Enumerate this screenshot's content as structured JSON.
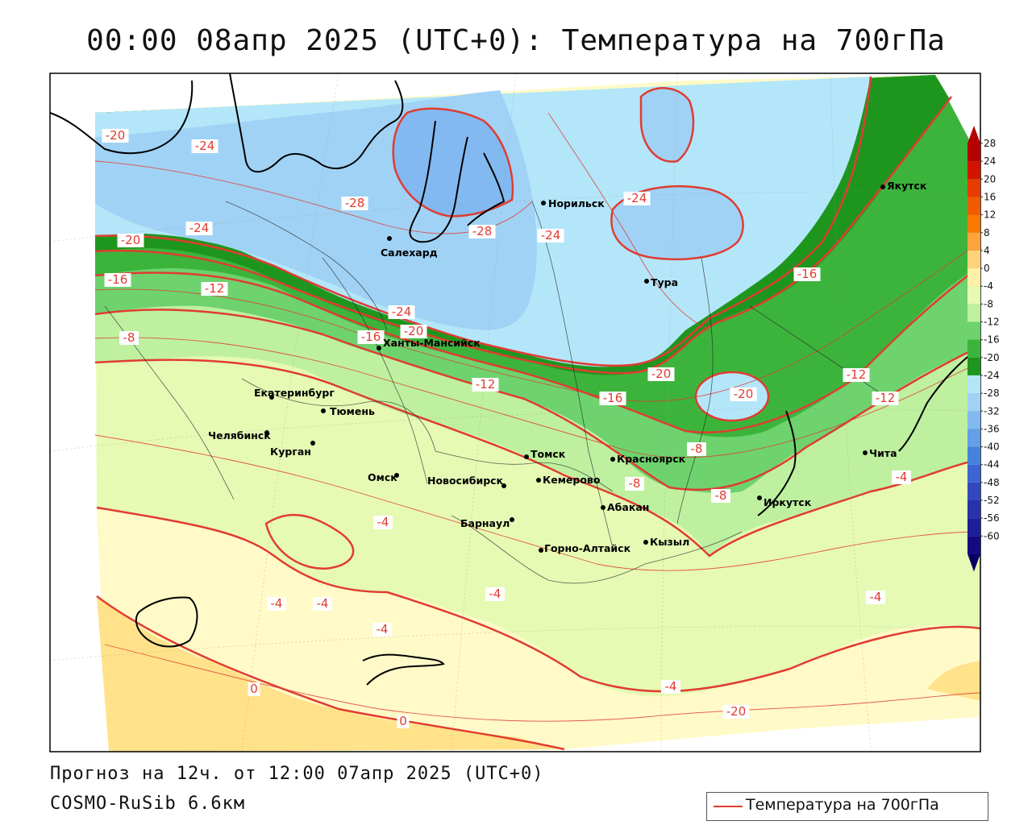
{
  "title": "00:00 08апр 2025 (UTC+0): Температура на 700гПа",
  "forecast_line": "Прогноз на 12ч. от 12:00 07апр 2025 (UTC+0)",
  "model_line": "COSMO-RuSib 6.6км",
  "legend": {
    "label": "Температура на 700гПа",
    "line_color": "#e03c31"
  },
  "colorbar": {
    "ticks": [
      "28",
      "24",
      "20",
      "16",
      "12",
      "8",
      "4",
      "0",
      "-4",
      "-8",
      "-12",
      "-16",
      "-20",
      "-24",
      "-28",
      "-32",
      "-36",
      "-40",
      "-44",
      "-48",
      "-52",
      "-56",
      "-60"
    ],
    "colors": [
      "#b40000",
      "#d21400",
      "#e63c00",
      "#f05a00",
      "#fa7800",
      "#fca33c",
      "#fed278",
      "#fff0a8",
      "#e6fab4",
      "#bef0a0",
      "#6ed26e",
      "#3cb43c",
      "#1e961e",
      "#b4e6fa",
      "#a0d2f5",
      "#82b9f0",
      "#64a0e6",
      "#4682dc",
      "#3c64d2",
      "#3246be",
      "#2832aa",
      "#1e1e96",
      "#140a82",
      "#0a0064"
    ]
  },
  "cities": [
    {
      "name": "Норильск"
    },
    {
      "name": "Якутск"
    },
    {
      "name": "Салехард"
    },
    {
      "name": "Тура"
    },
    {
      "name": "Ханты-Мансийск"
    },
    {
      "name": "Екатеринбург"
    },
    {
      "name": "Тюмень"
    },
    {
      "name": "Челябинск"
    },
    {
      "name": "Курган"
    },
    {
      "name": "Томск"
    },
    {
      "name": "Красноярск"
    },
    {
      "name": "Омск"
    },
    {
      "name": "Новосибирск"
    },
    {
      "name": "Кемерово"
    },
    {
      "name": "Абакан"
    },
    {
      "name": "Барнаул"
    },
    {
      "name": "Иркутск"
    },
    {
      "name": "Чита"
    },
    {
      "name": "Кызыл"
    },
    {
      "name": "Горно-Алтайск"
    }
  ],
  "isotherm_labels": [
    "-20",
    "-24",
    "-28",
    "-24",
    "-28",
    "-24",
    "-24",
    "-20",
    "-16",
    "-12",
    "-8",
    "-24",
    "-20",
    "-16",
    "-12",
    "-16",
    "-20",
    "-20",
    "-16",
    "-12",
    "-12",
    "-8",
    "-8",
    "-8",
    "-4",
    "-4",
    "-4",
    "-4",
    "-4",
    "-4",
    "-4",
    "-4",
    "0",
    "0",
    "-20"
  ]
}
